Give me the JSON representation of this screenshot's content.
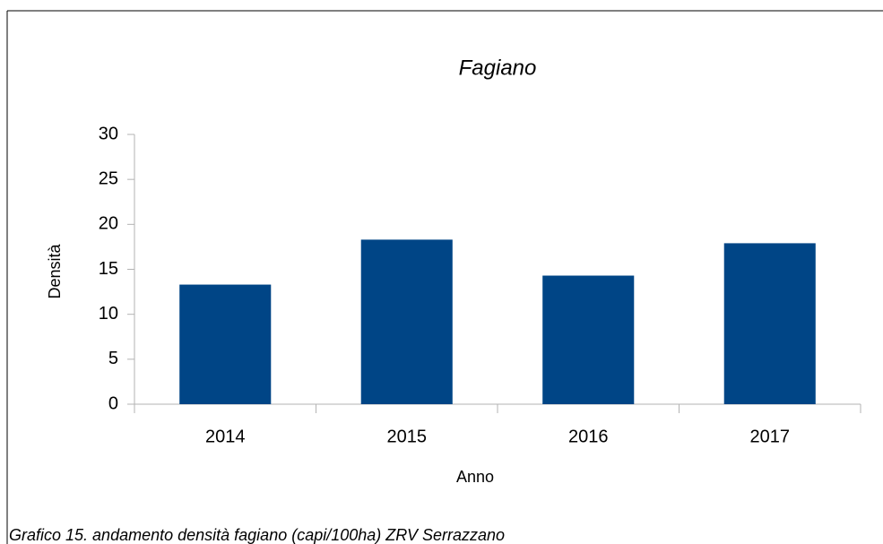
{
  "chart_data": {
    "type": "bar",
    "title": "Fagiano",
    "categories": [
      "2014",
      "2015",
      "2016",
      "2017"
    ],
    "values": [
      13.3,
      18.3,
      14.3,
      17.9
    ],
    "color": "#004586",
    "ylim": [
      0,
      30
    ],
    "yticks": [
      0,
      5,
      10,
      15,
      20,
      25,
      30
    ],
    "grid": false,
    "x_label": "Anno",
    "y_label": "Densità",
    "caption": "Grafico 15. andamento densità fagiano (capi/100ha) ZRV Serrazzano"
  }
}
